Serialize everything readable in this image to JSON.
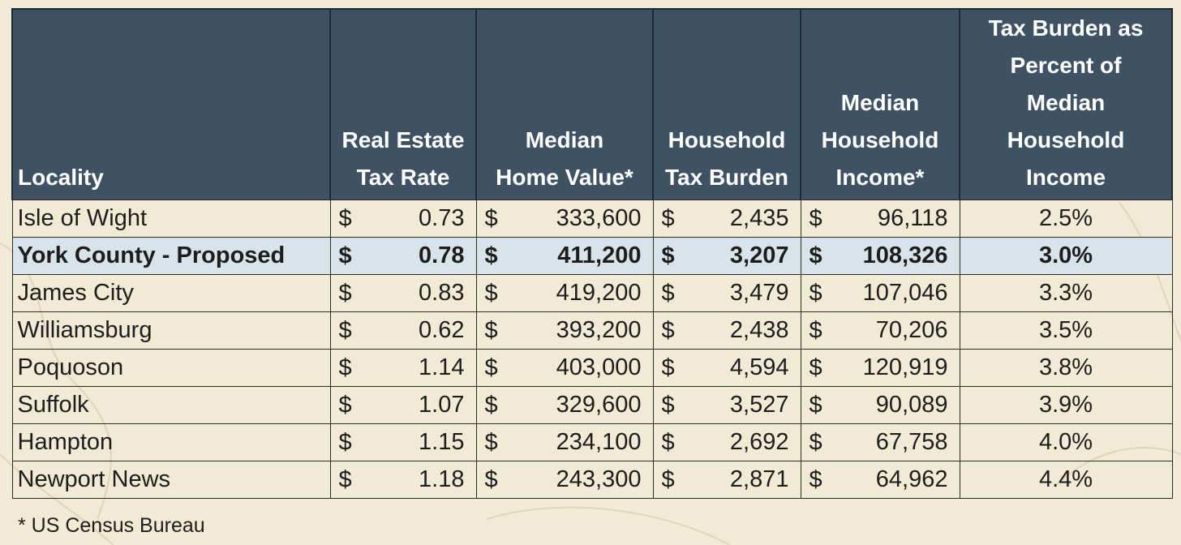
{
  "table": {
    "headers": {
      "locality": "Locality",
      "rate_l1": "Real Estate",
      "rate_l2": "Tax Rate",
      "home_l1": "Median",
      "home_l2": "Home Value*",
      "burden_l1": "Household",
      "burden_l2": "Tax Burden",
      "income_l1": "Median",
      "income_l2": "Household",
      "income_l3": "Income*",
      "pct_l1": "Tax Burden as",
      "pct_l2": "Percent of",
      "pct_l3": "Median",
      "pct_l4": "Household",
      "pct_l5": "Income"
    },
    "currency_symbol": "$",
    "rows": [
      {
        "locality": "Isle of Wight",
        "rate": "0.73",
        "home": "333,600",
        "burden": "2,435",
        "income": "96,118",
        "pct": "2.5%"
      },
      {
        "locality": "York County - Proposed",
        "rate": "0.78",
        "home": "411,200",
        "burden": "3,207",
        "income": "108,326",
        "pct": "3.0%"
      },
      {
        "locality": "James City",
        "rate": "0.83",
        "home": "419,200",
        "burden": "3,479",
        "income": "107,046",
        "pct": "3.3%"
      },
      {
        "locality": "Williamsburg",
        "rate": "0.62",
        "home": "393,200",
        "burden": "2,438",
        "income": "70,206",
        "pct": "3.5%"
      },
      {
        "locality": "Poquoson",
        "rate": "1.14",
        "home": "403,000",
        "burden": "4,594",
        "income": "120,919",
        "pct": "3.8%"
      },
      {
        "locality": "Suffolk",
        "rate": "1.07",
        "home": "329,600",
        "burden": "3,527",
        "income": "90,089",
        "pct": "3.9%"
      },
      {
        "locality": "Hampton",
        "rate": "1.15",
        "home": "234,100",
        "burden": "2,692",
        "income": "67,758",
        "pct": "4.0%"
      },
      {
        "locality": "Newport News",
        "rate": "1.18",
        "home": "243,300",
        "burden": "2,871",
        "income": "64,962",
        "pct": "4.4%"
      }
    ]
  },
  "footnote": "* US Census Bureau",
  "colors": {
    "header_bg": "#3f5264",
    "highlight_row": "#d9e4ea",
    "page_bg": "#f1ead5"
  }
}
